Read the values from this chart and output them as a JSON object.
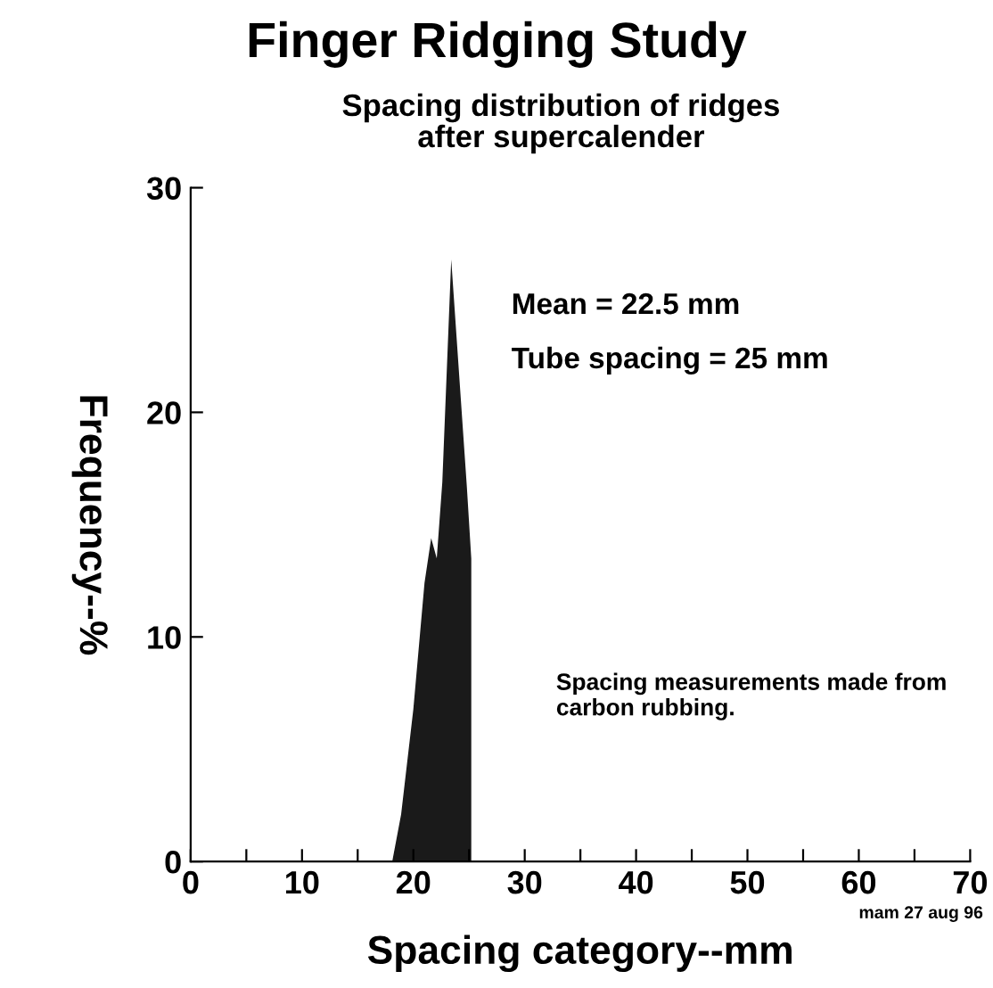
{
  "chart_data": {
    "type": "area",
    "title": "Finger Ridging Study",
    "subtitle": "Spacing distribution of ridges\nafter supercalender",
    "xlabel": "Spacing category--mm",
    "ylabel": "Frequency--%",
    "x": [
      18.1,
      18.9,
      20.0,
      21.0,
      21.6,
      22.1,
      22.6,
      23.4,
      24.8,
      25.2,
      25.2
    ],
    "series": [
      {
        "color": "#1a1a1a",
        "values": [
          0,
          2.1,
          6.8,
          12.4,
          14.4,
          13.5,
          16.9,
          26.8,
          16.7,
          13.5,
          0
        ]
      }
    ],
    "xlim": [
      0,
      70
    ],
    "ylim": [
      0,
      30
    ],
    "xticks": [
      0,
      {
        "value": 5,
        "label": null
      },
      10,
      {
        "value": 15,
        "label": null
      },
      20,
      {
        "value": 25,
        "label": null
      },
      30,
      {
        "value": 35,
        "label": null
      },
      40,
      {
        "value": 45,
        "label": null
      },
      50,
      {
        "value": 55,
        "label": null
      },
      60,
      {
        "value": 65,
        "label": null
      },
      70
    ],
    "yticks": [
      0,
      10,
      20,
      30
    ],
    "grid": false,
    "legend": false,
    "annotations": [
      "Mean = 22.5 mm",
      "Tube spacing = 25 mm",
      "Spacing measurements made from carbon rubbing.",
      "mam 27 aug 96"
    ]
  }
}
